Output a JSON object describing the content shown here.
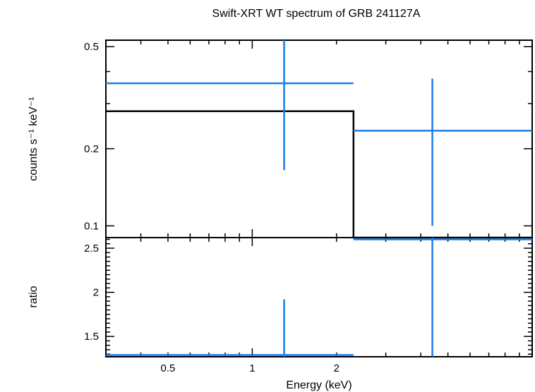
{
  "chart_data": [
    {
      "type": "scatter",
      "panel": "spectrum",
      "title": "Swift-XRT WT spectrum of GRB 241127A",
      "xlabel": "Energy (keV)",
      "ylabel": "counts s⁻¹ keV⁻¹",
      "xscale": "log",
      "yscale": "log",
      "xlim": [
        0.3,
        10
      ],
      "ylim": [
        0.09,
        0.53
      ],
      "yticks": [
        {
          "value": 0.1,
          "label": "0.1"
        },
        {
          "value": 0.2,
          "label": "0.2"
        },
        {
          "value": 0.5,
          "label": "0.5"
        }
      ],
      "series": [
        {
          "name": "data",
          "color": "#1a7fe6",
          "points": [
            {
              "x": 1.3,
              "xlo": 0.3,
              "xhi": 2.3,
              "y": 0.36,
              "ylo": 0.165,
              "yhi": 0.53
            },
            {
              "x": 4.4,
              "xlo": 2.3,
              "xhi": 10,
              "y": 0.235,
              "ylo": 0.1,
              "yhi": 0.375
            }
          ]
        },
        {
          "name": "model",
          "color": "#000000",
          "steps": [
            {
              "xlo": 0.3,
              "xhi": 2.3,
              "y": 0.28
            },
            {
              "xlo": 2.3,
              "xhi": 10,
              "y": 0.09
            }
          ]
        }
      ]
    },
    {
      "type": "scatter",
      "panel": "ratio",
      "xlabel": "Energy (keV)",
      "ylabel": "ratio",
      "xscale": "log",
      "yscale": "linear",
      "xlim": [
        0.3,
        10
      ],
      "ylim": [
        1.27,
        2.62
      ],
      "xticks": [
        {
          "value": 0.5,
          "label": "0.5"
        },
        {
          "value": 1,
          "label": "1"
        },
        {
          "value": 2,
          "label": "2"
        }
      ],
      "yticks": [
        {
          "value": 1.5,
          "label": "1.5"
        },
        {
          "value": 2,
          "label": "2"
        },
        {
          "value": 2.5,
          "label": "2.5"
        }
      ],
      "series": [
        {
          "name": "ratio",
          "color": "#1a7fe6",
          "points": [
            {
              "x": 1.3,
              "xlo": 0.3,
              "xhi": 2.3,
              "y": 1.29,
              "ylo": 1.27,
              "yhi": 1.92
            },
            {
              "x": 4.4,
              "xlo": 2.3,
              "xhi": 10,
              "y": 2.6,
              "ylo": 1.27,
              "yhi": 2.62
            }
          ]
        }
      ]
    }
  ]
}
